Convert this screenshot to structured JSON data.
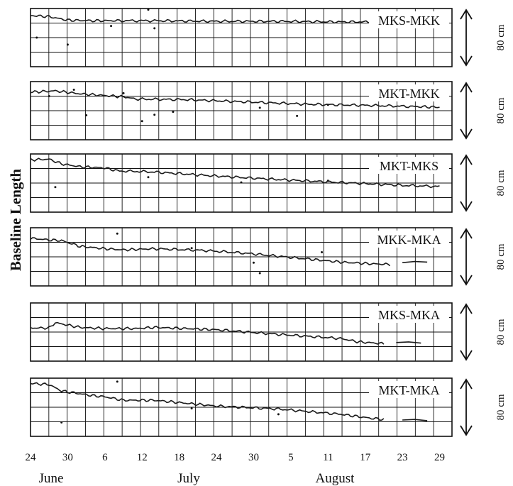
{
  "chart_data": {
    "type": "line",
    "ylabel": "Baseline Length",
    "x_tick_labels": [
      "24",
      "30",
      "6",
      "12",
      "18",
      "24",
      "30",
      "5",
      "11",
      "17",
      "23",
      "29"
    ],
    "month_labels": [
      "June",
      "July",
      "August"
    ],
    "xlim": [
      "June 24",
      "August 31"
    ],
    "grid": true,
    "scale_label": "80 cm",
    "series": [
      {
        "name": "MKS-MKK",
        "points": [
          [
            0,
            88
          ],
          [
            3,
            86
          ],
          [
            6,
            80
          ],
          [
            10,
            79
          ],
          [
            14,
            79
          ],
          [
            20,
            79
          ],
          [
            30,
            78
          ],
          [
            40,
            78
          ],
          [
            50,
            77
          ],
          [
            60,
            77
          ],
          [
            66,
            76
          ]
        ],
        "outliers": [
          [
            1,
            50
          ],
          [
            6,
            38
          ],
          [
            13,
            70
          ],
          [
            19,
            98
          ],
          [
            20,
            66
          ]
        ]
      },
      {
        "name": "MKT-MKK",
        "points": [
          [
            0,
            82
          ],
          [
            4,
            84
          ],
          [
            8,
            79
          ],
          [
            12,
            76
          ],
          [
            15,
            74
          ],
          [
            17,
            70
          ],
          [
            25,
            69
          ],
          [
            35,
            65
          ],
          [
            45,
            61
          ],
          [
            55,
            59
          ],
          [
            62,
            57
          ],
          [
            66,
            56
          ]
        ],
        "outliers": [
          [
            3,
            75
          ],
          [
            7,
            86
          ],
          [
            9,
            42
          ],
          [
            15,
            80
          ],
          [
            18,
            32
          ],
          [
            20,
            43
          ],
          [
            23,
            48
          ],
          [
            37,
            55
          ],
          [
            43,
            41
          ],
          [
            48,
            60
          ]
        ]
      },
      {
        "name": "MKT-MKS",
        "points": [
          [
            0,
            90
          ],
          [
            3,
            91
          ],
          [
            5,
            83
          ],
          [
            8,
            78
          ],
          [
            12,
            76
          ],
          [
            14,
            71
          ],
          [
            20,
            69
          ],
          [
            30,
            62
          ],
          [
            40,
            56
          ],
          [
            50,
            51
          ],
          [
            60,
            46
          ],
          [
            66,
            44
          ]
        ],
        "outliers": [
          [
            4,
            43
          ],
          [
            19,
            60
          ],
          [
            34,
            51
          ],
          [
            48,
            54
          ]
        ]
      },
      {
        "name": "MKK-MKA",
        "points": [
          [
            0,
            82
          ],
          [
            3,
            79
          ],
          [
            5,
            78
          ],
          [
            8,
            68
          ],
          [
            12,
            64
          ],
          [
            15,
            62
          ],
          [
            20,
            64
          ],
          [
            28,
            61
          ],
          [
            35,
            56
          ],
          [
            45,
            46
          ],
          [
            50,
            41
          ],
          [
            55,
            38
          ],
          [
            58,
            37
          ]
        ],
        "outliers": [
          [
            14,
            90
          ],
          [
            26,
            65
          ],
          [
            36,
            40
          ],
          [
            37,
            22
          ],
          [
            47,
            58
          ]
        ],
        "tail": [
          [
            60,
            40
          ],
          [
            62,
            42
          ],
          [
            64,
            41
          ]
        ]
      },
      {
        "name": "MKS-MKA",
        "points": [
          [
            0,
            57
          ],
          [
            3,
            57
          ],
          [
            4,
            66
          ],
          [
            8,
            58
          ],
          [
            12,
            56
          ],
          [
            17,
            56
          ],
          [
            20,
            58
          ],
          [
            25,
            56
          ],
          [
            30,
            54
          ],
          [
            40,
            46
          ],
          [
            50,
            39
          ],
          [
            53,
            33
          ],
          [
            57,
            30
          ]
        ],
        "outliers": [],
        "tail": [
          [
            59,
            32
          ],
          [
            61,
            33
          ],
          [
            63,
            31
          ]
        ]
      },
      {
        "name": "MKT-MKA",
        "points": [
          [
            0,
            91
          ],
          [
            3,
            89
          ],
          [
            5,
            78
          ],
          [
            10,
            70
          ],
          [
            12,
            68
          ],
          [
            15,
            62
          ],
          [
            20,
            62
          ],
          [
            25,
            57
          ],
          [
            30,
            52
          ],
          [
            40,
            47
          ],
          [
            50,
            38
          ],
          [
            55,
            31
          ],
          [
            57,
            29
          ]
        ],
        "outliers": [
          [
            5,
            24
          ],
          [
            14,
            94
          ],
          [
            26,
            48
          ],
          [
            40,
            38
          ]
        ],
        "tail": [
          [
            60,
            28
          ],
          [
            62,
            29
          ],
          [
            64,
            27
          ]
        ]
      }
    ]
  }
}
